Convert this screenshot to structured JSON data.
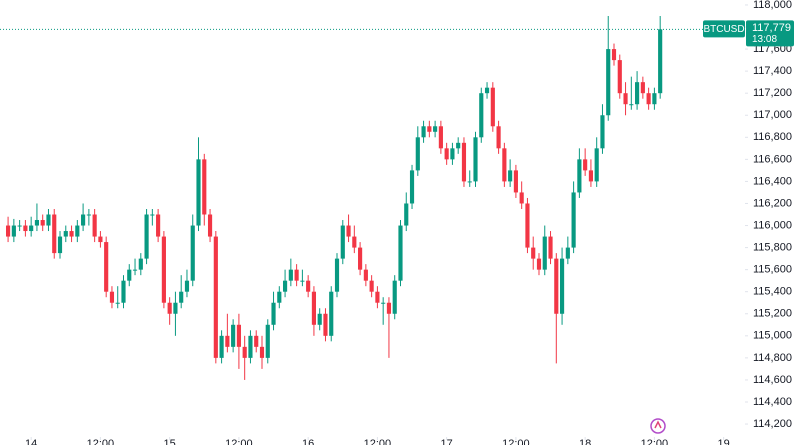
{
  "chart_data": {
    "type": "candlestick",
    "symbol": "BTCUSD",
    "up_color": "#089981",
    "down_color": "#f23645",
    "ylim": [
      114010,
      118045
    ],
    "yticks": [
      {
        "value": 114200,
        "label": "114,200"
      },
      {
        "value": 114400,
        "label": "114,400"
      },
      {
        "value": 114600,
        "label": "114,600"
      },
      {
        "value": 114800,
        "label": "114,800"
      },
      {
        "value": 115000,
        "label": "115,000"
      },
      {
        "value": 115200,
        "label": "115,200"
      },
      {
        "value": 115400,
        "label": "115,400"
      },
      {
        "value": 115600,
        "label": "115,600"
      },
      {
        "value": 115800,
        "label": "115,800"
      },
      {
        "value": 116000,
        "label": "116,000"
      },
      {
        "value": 116200,
        "label": "116,200"
      },
      {
        "value": 116400,
        "label": "116,400"
      },
      {
        "value": 116600,
        "label": "116,600"
      },
      {
        "value": 116800,
        "label": "116,800"
      },
      {
        "value": 117000,
        "label": "117,000"
      },
      {
        "value": 117200,
        "label": "117,200"
      },
      {
        "value": 117400,
        "label": "117,400"
      },
      {
        "value": 117600,
        "label": "117,600"
      },
      {
        "value": 117800,
        "label": "117,800"
      },
      {
        "value": 118000,
        "label": "118,000"
      }
    ],
    "xlim": [
      -1.4,
      127.7
    ],
    "xticks": [
      {
        "value": 4,
        "label": "14"
      },
      {
        "value": 16,
        "label": "12:00"
      },
      {
        "value": 28,
        "label": "15"
      },
      {
        "value": 40,
        "label": "12:00"
      },
      {
        "value": 52,
        "label": "16"
      },
      {
        "value": 64,
        "label": "12:00"
      },
      {
        "value": 76,
        "label": "17"
      },
      {
        "value": 88,
        "label": "12:00"
      },
      {
        "value": 100,
        "label": "18"
      },
      {
        "value": 112,
        "label": "12:00"
      },
      {
        "value": 124,
        "label": "19"
      }
    ],
    "open": [
      116000,
      115900,
      116000,
      116000,
      115950,
      116000,
      116050,
      116000,
      116100,
      115750,
      115900,
      115950,
      115900,
      116000,
      116100,
      116100,
      115900,
      115850,
      115400,
      115300,
      115300,
      115500,
      115600,
      115600,
      115700,
      116100,
      116100,
      115900,
      115300,
      115200,
      115300,
      115400,
      115500,
      116000,
      116600,
      116100,
      115900,
      114800,
      115000,
      114900,
      115100,
      114900,
      114800,
      115000,
      114900,
      114800,
      115100,
      115300,
      115400,
      115500,
      115600,
      115500,
      115500,
      115400,
      115100,
      115200,
      115000,
      115400,
      115700,
      116000,
      115900,
      115800,
      115600,
      115500,
      115400,
      115300,
      115300,
      115200,
      115500,
      116000,
      116200,
      116500,
      116800,
      116900,
      116850,
      116900,
      116700,
      116600,
      116700,
      116750,
      116400,
      116400,
      116800,
      117200,
      117250,
      116900,
      116700,
      116400,
      116500,
      116300,
      116200,
      115800,
      115700,
      115600,
      115900,
      115700,
      115200,
      115700,
      115800,
      116300,
      116600,
      116500,
      116400,
      116700,
      117000,
      117600,
      117500,
      117200,
      117100,
      117100,
      117300,
      117200,
      117100,
      117200
    ],
    "high": [
      116080,
      116060,
      116050,
      116050,
      116080,
      116200,
      116100,
      116150,
      116150,
      115950,
      116000,
      116000,
      116050,
      116200,
      116150,
      116150,
      115950,
      115900,
      115450,
      115450,
      115550,
      115650,
      115700,
      115750,
      116150,
      116150,
      116150,
      115950,
      115350,
      115400,
      115550,
      115600,
      116100,
      116800,
      116650,
      116150,
      115950,
      115050,
      115200,
      115150,
      115200,
      115000,
      115050,
      115050,
      115000,
      115150,
      115400,
      115450,
      115600,
      115700,
      115650,
      115600,
      115550,
      115450,
      115250,
      115250,
      115450,
      115750,
      116050,
      116100,
      116000,
      115850,
      115650,
      115550,
      115450,
      115350,
      115350,
      115550,
      116050,
      116300,
      116550,
      116900,
      116950,
      116950,
      116950,
      116950,
      116750,
      116750,
      116800,
      116800,
      116500,
      116850,
      117250,
      117300,
      117300,
      116950,
      116750,
      116600,
      116550,
      116400,
      116250,
      115900,
      115750,
      116000,
      115950,
      115750,
      115800,
      115900,
      116400,
      116700,
      116700,
      116600,
      116800,
      117100,
      117900,
      117650,
      117550,
      117300,
      117350,
      117400,
      117350,
      117250,
      117250,
      117900
    ],
    "low": [
      115850,
      115850,
      115950,
      115900,
      115900,
      115950,
      115950,
      115950,
      115700,
      115700,
      115850,
      115850,
      115850,
      115950,
      116000,
      115850,
      115800,
      115350,
      115250,
      115250,
      115250,
      115450,
      115550,
      115550,
      115650,
      116000,
      115850,
      115250,
      115100,
      115000,
      115250,
      115350,
      115450,
      115950,
      116000,
      115850,
      114750,
      114750,
      114850,
      114850,
      114700,
      114600,
      114750,
      114850,
      114700,
      114750,
      115050,
      115250,
      115350,
      115450,
      115450,
      115450,
      115350,
      115000,
      115050,
      114950,
      114950,
      115350,
      115650,
      115850,
      115750,
      115550,
      115450,
      115350,
      115250,
      115100,
      114800,
      115150,
      115450,
      115950,
      116150,
      116450,
      116750,
      116800,
      116800,
      116650,
      116550,
      116550,
      116650,
      116350,
      116350,
      116350,
      116750,
      117150,
      116850,
      116650,
      116350,
      116350,
      116250,
      116150,
      115750,
      115600,
      115550,
      115550,
      115650,
      114750,
      115100,
      115650,
      115750,
      116250,
      116450,
      116350,
      116350,
      116650,
      116950,
      117450,
      117150,
      117000,
      117050,
      117050,
      117150,
      117050,
      117050,
      117150
    ],
    "close": [
      115900,
      116000,
      116000,
      115950,
      116000,
      116050,
      116000,
      116100,
      115750,
      115900,
      115950,
      115900,
      116000,
      116100,
      116100,
      115900,
      115850,
      115400,
      115300,
      115300,
      115500,
      115600,
      115600,
      115700,
      116100,
      116100,
      115900,
      115300,
      115200,
      115300,
      115400,
      115500,
      116000,
      116600,
      116100,
      115900,
      114800,
      115000,
      114900,
      115100,
      114900,
      114800,
      115000,
      114900,
      114800,
      115100,
      115300,
      115400,
      115500,
      115600,
      115500,
      115500,
      115400,
      115100,
      115200,
      115000,
      115400,
      115700,
      116000,
      115900,
      115800,
      115600,
      115500,
      115400,
      115300,
      115300,
      115200,
      115500,
      116000,
      116200,
      116500,
      116800,
      116900,
      116850,
      116900,
      116700,
      116600,
      116700,
      116750,
      116400,
      116400,
      116800,
      117200,
      117250,
      116900,
      116700,
      116400,
      116500,
      116300,
      116200,
      115800,
      115700,
      115600,
      115900,
      115700,
      115200,
      115700,
      115800,
      116300,
      116600,
      116500,
      116400,
      116700,
      117000,
      117600,
      117500,
      117200,
      117100,
      117100,
      117300,
      117200,
      117100,
      117200,
      117779
    ],
    "last_price": {
      "value": 117779,
      "label": "117,779"
    },
    "countdown": "13:08"
  }
}
